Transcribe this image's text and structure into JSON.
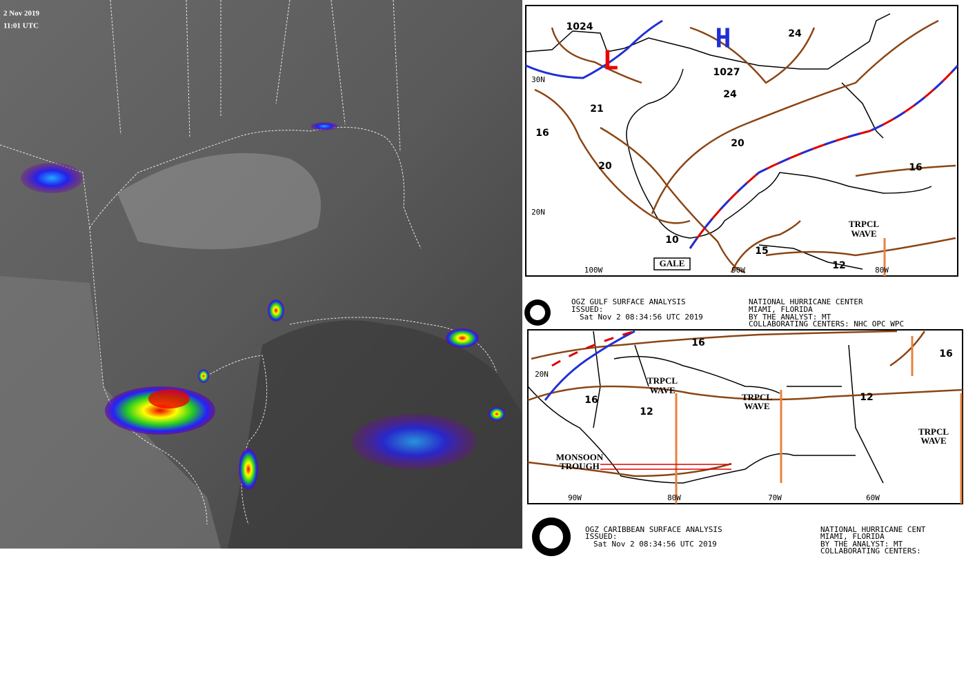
{
  "satellite": {
    "date": "2 Nov 2019",
    "time": "11:01 UTC"
  },
  "gulf_map": {
    "low": "L",
    "high": "H",
    "pressures": [
      "1024",
      "1027"
    ],
    "isobars": [
      "24",
      "24",
      "21",
      "16",
      "20",
      "20",
      "16",
      "10",
      "15",
      "12"
    ],
    "lat_labels": [
      "30N",
      "20N"
    ],
    "lon_labels": [
      "100W",
      "90W",
      "80W"
    ],
    "wave_label": [
      "TRPCL",
      "WAVE"
    ],
    "gale": "GALE"
  },
  "gulf_header": {
    "title": "OGZ GULF SURFACE ANALYSIS",
    "issued": "ISSUED:",
    "time": "Sat Nov 2 08:34:56 UTC 2019",
    "center": "NATIONAL HURRICANE CENTER",
    "location": "MIAMI, FLORIDA",
    "analyst": "BY THE ANALYST: MT",
    "collab": "COLLABORATING CENTERS: NHC OPC WPC"
  },
  "caribbean_map": {
    "isobars": [
      "16",
      "16",
      "16",
      "12",
      "12"
    ],
    "lat_labels": [
      "20N"
    ],
    "lon_labels": [
      "90W",
      "80W",
      "70W",
      "60W"
    ],
    "waves": [
      [
        "TRPCL",
        "WAVE"
      ],
      [
        "TRPCL",
        "WAVE"
      ],
      [
        "TRPCL",
        "WAVE"
      ]
    ],
    "monsoon": [
      "MONSOON",
      "TROUGH"
    ]
  },
  "caribbean_header": {
    "title": "OGZ CARIBBEAN SURFACE ANALYSIS",
    "issued": "ISSUED:",
    "time": "Sat Nov 2 08:34:56 UTC 2019",
    "center": "NATIONAL HURRICANE CENT",
    "location": "MIAMI, FLORIDA",
    "analyst": "BY THE ANALYST: MT",
    "collab": "COLLABORATING CENTERS:"
  }
}
